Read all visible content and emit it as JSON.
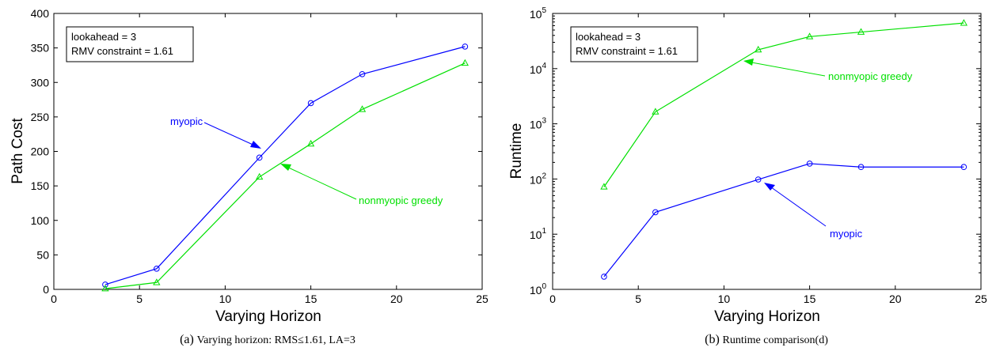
{
  "chart_data": [
    {
      "type": "line",
      "xlabel": "Varying Horizon",
      "ylabel": "Path Cost",
      "xlim": [
        0,
        25
      ],
      "ylim": [
        0,
        400
      ],
      "xticks": [
        0,
        5,
        10,
        15,
        20,
        25
      ],
      "yticks": [
        0,
        50,
        100,
        150,
        200,
        250,
        300,
        350,
        400
      ],
      "grid": false,
      "legend_box": [
        "lookahead = 3",
        "RMV constraint = 1.61"
      ],
      "caption_prefix": "(a)",
      "caption_text": "Varying horizon: RMS≤1.61, LA=3",
      "series": [
        {
          "name": "myopic",
          "color": "#0000ff",
          "marker": "circle",
          "x": [
            3,
            6,
            12,
            15,
            18,
            24
          ],
          "y": [
            7,
            30,
            191,
            270,
            312,
            352
          ]
        },
        {
          "name": "nonmyopic greedy",
          "color": "#00e000",
          "marker": "triangle",
          "x": [
            3,
            6,
            12,
            15,
            18,
            24
          ],
          "y": [
            1,
            10,
            163,
            211,
            261,
            328
          ]
        }
      ],
      "annotations": [
        {
          "text": "myopic",
          "series": 0,
          "point_index": 2
        },
        {
          "text": "nonmyopic greedy",
          "series": 1,
          "point_index": 2
        }
      ]
    },
    {
      "type": "line",
      "xlabel": "Varying Horizon",
      "ylabel": "Runtime",
      "xlim": [
        0,
        25
      ],
      "ylim": [
        1,
        100000
      ],
      "yscale": "log",
      "xticks": [
        0,
        5,
        10,
        15,
        20,
        25
      ],
      "ytick_base": "10",
      "ytick_exponents": [
        "0",
        "1",
        "2",
        "3",
        "4",
        "5"
      ],
      "grid": false,
      "legend_box": [
        "lookahead = 3",
        "RMV constraint = 1.61"
      ],
      "caption_prefix": "(b)",
      "caption_text": "Runtime comparison(d)",
      "series": [
        {
          "name": "myopic",
          "color": "#0000ff",
          "marker": "circle",
          "x": [
            3,
            6,
            12,
            15,
            18,
            24
          ],
          "y": [
            1.7,
            25,
            98,
            190,
            165,
            165
          ]
        },
        {
          "name": "nonmyopic greedy",
          "color": "#00e000",
          "marker": "triangle",
          "x": [
            3,
            6,
            12,
            15,
            18,
            24
          ],
          "y": [
            72,
            1650,
            22000,
            38000,
            46000,
            67000
          ]
        }
      ],
      "annotations": [
        {
          "text": "nonmyopic greedy",
          "series": 1,
          "point_index": 2
        },
        {
          "text": "myopic",
          "series": 0,
          "point_index": 2
        }
      ]
    }
  ]
}
